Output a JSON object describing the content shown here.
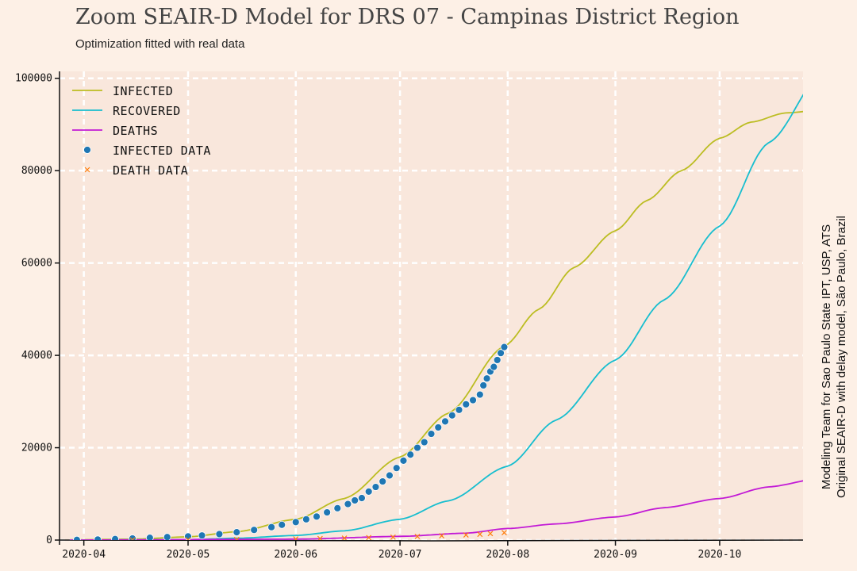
{
  "title": "Zoom SEAIR-D Model for DRS 07 - Campinas District Region",
  "subtitle": "Optimization fitted with real data",
  "credits": [
    "Modeling Team for Sao Paulo State IPT, USP, ATS",
    "Original SEAIR-D with delay model, São Paulo, Brazil"
  ],
  "colors": {
    "background": "#fdf0e6",
    "plot_bg": "#f9e7dc",
    "grid": "#ffffff",
    "infected": "#bcbd22",
    "recovered": "#17becf",
    "deaths": "#c21ad6",
    "infected_data": "#1f77b4",
    "death_data": "#ff7f0e"
  },
  "chart_data": {
    "type": "line",
    "title": "Zoom SEAIR-D Model for DRS 07 - Campinas District Region",
    "subtitle": "Optimization fitted with real data",
    "x_type": "date",
    "xlim": [
      "2020-03-25",
      "2020-10-25"
    ],
    "ylim": [
      0,
      101500
    ],
    "grid": true,
    "legend_position": "top-left",
    "x_ticks": [
      "2020-04",
      "2020-05",
      "2020-06",
      "2020-07",
      "2020-08",
      "2020-09",
      "2020-10"
    ],
    "y_ticks": [
      0,
      20000,
      40000,
      60000,
      80000,
      100000
    ],
    "series": [
      {
        "name": "INFECTED",
        "style": "line",
        "color": "#bcbd22",
        "points": [
          [
            "2020-03-28",
            50
          ],
          [
            "2020-04-15",
            200
          ],
          [
            "2020-05-01",
            700
          ],
          [
            "2020-05-15",
            1800
          ],
          [
            "2020-06-01",
            4500
          ],
          [
            "2020-06-15",
            9000
          ],
          [
            "2020-07-01",
            18000
          ],
          [
            "2020-07-15",
            27500
          ],
          [
            "2020-07-31",
            42000
          ],
          [
            "2020-08-10",
            50000
          ],
          [
            "2020-08-20",
            59000
          ],
          [
            "2020-09-01",
            67000
          ],
          [
            "2020-09-10",
            73500
          ],
          [
            "2020-09-20",
            80000
          ],
          [
            "2020-10-01",
            87000
          ],
          [
            "2020-10-10",
            90500
          ],
          [
            "2020-10-20",
            92500
          ],
          [
            "2020-10-29",
            93000
          ]
        ]
      },
      {
        "name": "RECOVERED",
        "style": "line",
        "color": "#17becf",
        "points": [
          [
            "2020-03-28",
            0
          ],
          [
            "2020-05-01",
            100
          ],
          [
            "2020-05-15",
            400
          ],
          [
            "2020-06-01",
            1000
          ],
          [
            "2020-06-15",
            2000
          ],
          [
            "2020-07-01",
            4500
          ],
          [
            "2020-07-15",
            8500
          ],
          [
            "2020-08-01",
            16000
          ],
          [
            "2020-08-15",
            26000
          ],
          [
            "2020-09-01",
            39000
          ],
          [
            "2020-09-15",
            52000
          ],
          [
            "2020-10-01",
            68000
          ],
          [
            "2020-10-15",
            86000
          ],
          [
            "2020-10-31",
            101500
          ]
        ]
      },
      {
        "name": "DEATHS",
        "style": "line",
        "color": "#c21ad6",
        "points": [
          [
            "2020-03-28",
            0
          ],
          [
            "2020-06-01",
            200
          ],
          [
            "2020-07-01",
            800
          ],
          [
            "2020-07-20",
            1500
          ],
          [
            "2020-08-01",
            2500
          ],
          [
            "2020-08-15",
            3500
          ],
          [
            "2020-09-01",
            5000
          ],
          [
            "2020-09-15",
            7000
          ],
          [
            "2020-10-01",
            9000
          ],
          [
            "2020-10-15",
            11500
          ],
          [
            "2020-10-29",
            13200
          ]
        ]
      },
      {
        "name": "INFECTED DATA",
        "style": "scatter",
        "marker": "circle",
        "color": "#1f77b4",
        "points": [
          [
            "2020-03-30",
            40
          ],
          [
            "2020-04-05",
            120
          ],
          [
            "2020-04-10",
            220
          ],
          [
            "2020-04-15",
            350
          ],
          [
            "2020-04-20",
            500
          ],
          [
            "2020-04-25",
            650
          ],
          [
            "2020-05-01",
            800
          ],
          [
            "2020-05-05",
            1000
          ],
          [
            "2020-05-10",
            1300
          ],
          [
            "2020-05-15",
            1700
          ],
          [
            "2020-05-20",
            2200
          ],
          [
            "2020-05-25",
            2800
          ],
          [
            "2020-05-28",
            3300
          ],
          [
            "2020-06-01",
            3900
          ],
          [
            "2020-06-04",
            4500
          ],
          [
            "2020-06-07",
            5100
          ],
          [
            "2020-06-10",
            6000
          ],
          [
            "2020-06-13",
            6900
          ],
          [
            "2020-06-16",
            7800
          ],
          [
            "2020-06-18",
            8600
          ],
          [
            "2020-06-20",
            9100
          ],
          [
            "2020-06-22",
            10500
          ],
          [
            "2020-06-24",
            11500
          ],
          [
            "2020-06-26",
            12700
          ],
          [
            "2020-06-28",
            14000
          ],
          [
            "2020-06-30",
            15600
          ],
          [
            "2020-07-02",
            17200
          ],
          [
            "2020-07-04",
            18500
          ],
          [
            "2020-07-06",
            20000
          ],
          [
            "2020-07-08",
            21200
          ],
          [
            "2020-07-10",
            23000
          ],
          [
            "2020-07-12",
            24400
          ],
          [
            "2020-07-14",
            25700
          ],
          [
            "2020-07-16",
            27000
          ],
          [
            "2020-07-18",
            28200
          ],
          [
            "2020-07-20",
            29400
          ],
          [
            "2020-07-22",
            30300
          ],
          [
            "2020-07-24",
            31500
          ],
          [
            "2020-07-25",
            33500
          ],
          [
            "2020-07-26",
            35000
          ],
          [
            "2020-07-27",
            36500
          ],
          [
            "2020-07-28",
            37500
          ],
          [
            "2020-07-29",
            39000
          ],
          [
            "2020-07-30",
            40500
          ],
          [
            "2020-07-31",
            41800
          ]
        ]
      },
      {
        "name": "DEATH DATA",
        "style": "scatter",
        "marker": "x",
        "color": "#ff7f0e",
        "points": [
          [
            "2020-04-15",
            20
          ],
          [
            "2020-05-01",
            60
          ],
          [
            "2020-05-15",
            120
          ],
          [
            "2020-06-01",
            250
          ],
          [
            "2020-06-08",
            330
          ],
          [
            "2020-06-15",
            420
          ],
          [
            "2020-06-22",
            520
          ],
          [
            "2020-06-29",
            640
          ],
          [
            "2020-07-06",
            780
          ],
          [
            "2020-07-13",
            930
          ],
          [
            "2020-07-20",
            1100
          ],
          [
            "2020-07-24",
            1250
          ],
          [
            "2020-07-27",
            1400
          ],
          [
            "2020-07-31",
            1600
          ]
        ]
      }
    ]
  }
}
